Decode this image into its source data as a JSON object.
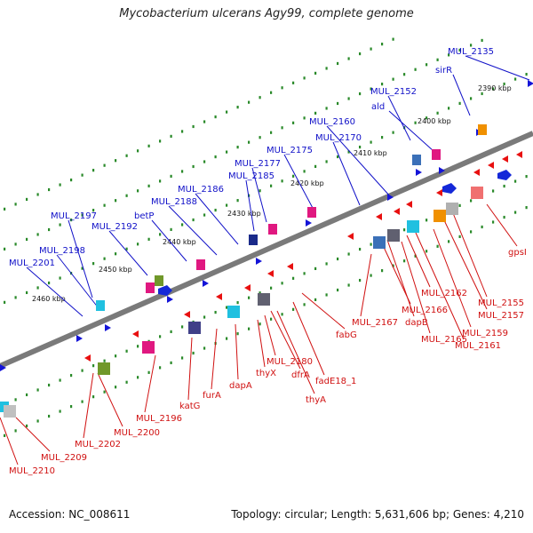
{
  "header": {
    "title": "Mycobacterium ulcerans Agy99, complete genome"
  },
  "footer": {
    "accession": "Accession: NC_008611",
    "summary": "Topology: circular; Length: 5,631,606 bp; Genes: 4,210"
  },
  "colors": {
    "plus_label": "#1010c8",
    "minus_label": "#d01010",
    "backbone": "#7a7a7a",
    "tick_dot": "#2a8a2a"
  },
  "ticks": [
    "2390 kbp",
    "2400 kbp",
    "2410 kbp",
    "2420 kbp",
    "2430 kbp",
    "2440 kbp",
    "2450 kbp",
    "2460 kbp"
  ],
  "plus_genes": [
    "MUL_2135",
    "sirR",
    "MUL_2152",
    "ald",
    "MUL_2160",
    "MUL_2170",
    "MUL_2175",
    "MUL_2177",
    "MUL_2185",
    "MUL_2186",
    "MUL_2188",
    "betP",
    "MUL_2192",
    "MUL_2197",
    "MUL_2198",
    "MUL_2201"
  ],
  "minus_genes": [
    "gpsI",
    "MUL_2155",
    "MUL_2157",
    "MUL_2159",
    "MUL_2161",
    "MUL_2162",
    "MUL_2165",
    "dapB",
    "MUL_2166",
    "MUL_2167",
    "fabG",
    "fadE18_1",
    "thyA",
    "dfrA",
    "MUL_2180",
    "thyX",
    "dapA",
    "furA",
    "katG",
    "MUL_2196",
    "MUL_2200",
    "MUL_2202",
    "MUL_2209",
    "MUL_2210"
  ]
}
